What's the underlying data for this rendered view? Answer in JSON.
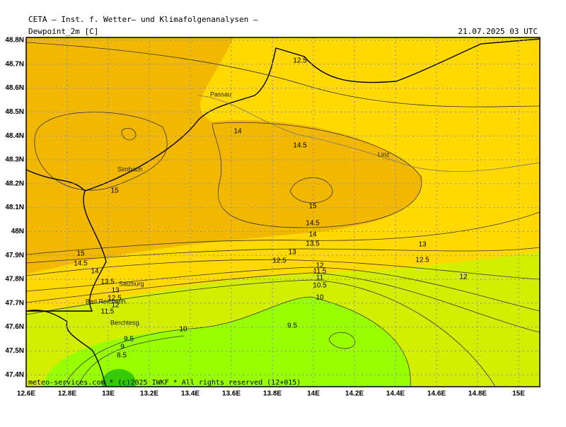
{
  "header": {
    "title": "CETA — Inst. f. Wetter— und Klimafolgenanalysen —",
    "parameter": "Dewpoint_2m [C]",
    "timestamp": "21.07.2025 03 UTC"
  },
  "axes": {
    "x_ticks": [
      {
        "value": 12.6,
        "label": "12.6E"
      },
      {
        "value": 12.8,
        "label": "12.8E"
      },
      {
        "value": 13,
        "label": "13E"
      },
      {
        "value": 13.2,
        "label": "13.2E"
      },
      {
        "value": 13.4,
        "label": "13.4E"
      },
      {
        "value": 13.6,
        "label": "13.6E"
      },
      {
        "value": 13.8,
        "label": "13.8E"
      },
      {
        "value": 14,
        "label": "14E"
      },
      {
        "value": 14.2,
        "label": "14.2E"
      },
      {
        "value": 14.4,
        "label": "14.4E"
      },
      {
        "value": 14.6,
        "label": "14.6E"
      },
      {
        "value": 14.8,
        "label": "14.8E"
      },
      {
        "value": 15,
        "label": "15E"
      }
    ],
    "y_ticks": [
      {
        "value": 48.8,
        "label": "48.8N"
      },
      {
        "value": 48.7,
        "label": "48.7N"
      },
      {
        "value": 48.6,
        "label": "48.6N"
      },
      {
        "value": 48.5,
        "label": "48.5N"
      },
      {
        "value": 48.4,
        "label": "48.4N"
      },
      {
        "value": 48.3,
        "label": "48.3N"
      },
      {
        "value": 48.2,
        "label": "48.2N"
      },
      {
        "value": 48.1,
        "label": "48.1N"
      },
      {
        "value": 48,
        "label": "48N"
      },
      {
        "value": 47.9,
        "label": "47.9N"
      },
      {
        "value": 47.8,
        "label": "47.8N"
      },
      {
        "value": 47.7,
        "label": "47.7N"
      },
      {
        "value": 47.6,
        "label": "47.6N"
      },
      {
        "value": 47.5,
        "label": "47.5N"
      },
      {
        "value": 47.4,
        "label": "47.4N"
      }
    ]
  },
  "places": [
    "Passau",
    "Linz",
    "Simbach",
    "Salzburg",
    "Bad Reichenh.",
    "Berchtesg."
  ],
  "contour_labels": [
    "12.5",
    "14",
    "14.5",
    "15",
    "15",
    "14.5",
    "14",
    "13.5",
    "13",
    "12.5",
    "13",
    "12.5",
    "12",
    "11.5",
    "11",
    "10.5",
    "10",
    "12",
    "15",
    "14.5",
    "14",
    "13.5",
    "13",
    "12.5",
    "12",
    "11.5",
    "10",
    "9.5",
    "9.5",
    "9",
    "8.5"
  ],
  "footer": "meteo-services.com * (c)2025 IWKF * All rights reserved (12+015)"
}
